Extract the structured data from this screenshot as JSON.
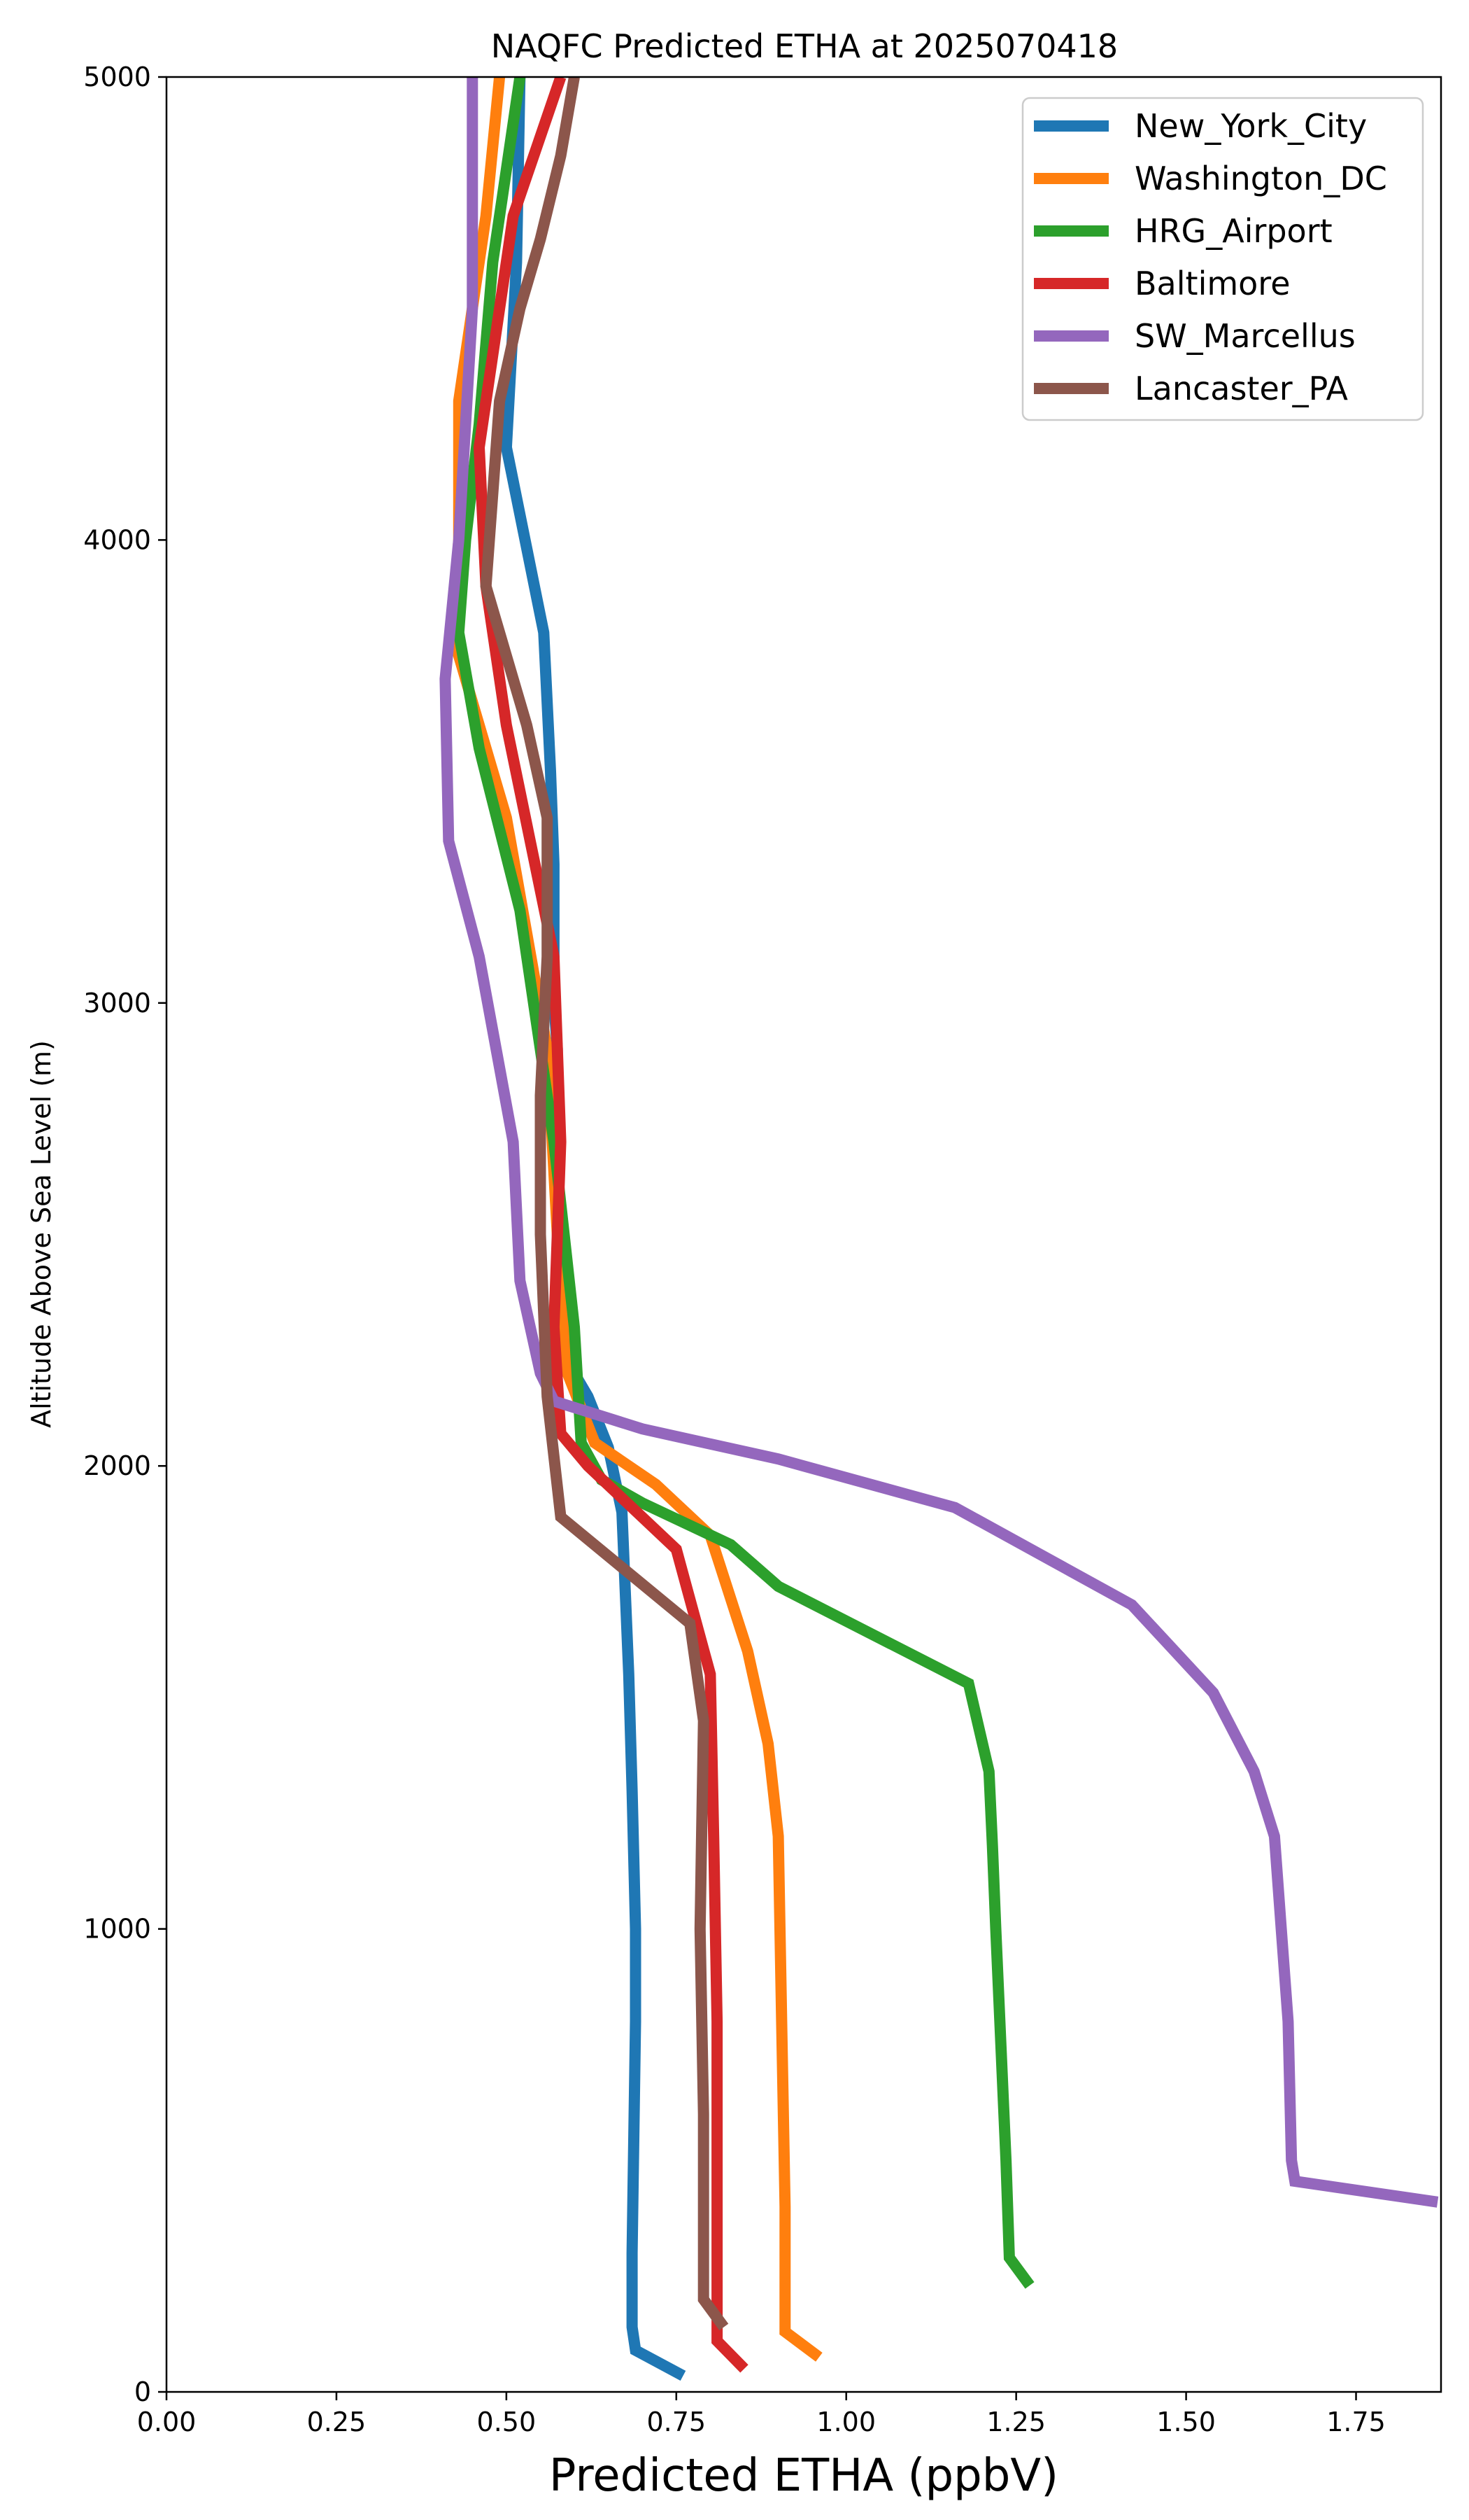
{
  "chart_data": {
    "type": "line",
    "title": "NAQFC Predicted ETHA at 2025070418",
    "xlabel": "Predicted ETHA (ppbV)",
    "ylabel": "Altitude Above Sea Level (m)",
    "xlim": [
      0,
      1.875
    ],
    "ylim": [
      0,
      5000
    ],
    "xticks": [
      "0.00",
      "0.25",
      "0.50",
      "0.75",
      "1.00",
      "1.25",
      "1.50",
      "1.75"
    ],
    "xtick_values": [
      0,
      0.25,
      0.5,
      0.75,
      1.0,
      1.25,
      1.5,
      1.75
    ],
    "yticks": [
      "0",
      "1000",
      "2000",
      "3000",
      "4000",
      "5000"
    ],
    "ytick_values": [
      0,
      1000,
      2000,
      3000,
      4000,
      5000
    ],
    "grid": false,
    "legend_position": "top-right",
    "series": [
      {
        "name": "New_York_City",
        "color": "#1f77b4",
        "points": [
          [
            0.76,
            35
          ],
          [
            0.69,
            90
          ],
          [
            0.685,
            140
          ],
          [
            0.685,
            300
          ],
          [
            0.69,
            800
          ],
          [
            0.69,
            1000
          ],
          [
            0.685,
            1300
          ],
          [
            0.68,
            1550
          ],
          [
            0.67,
            1900
          ],
          [
            0.65,
            2040
          ],
          [
            0.62,
            2150
          ],
          [
            0.58,
            2250
          ],
          [
            0.575,
            2700
          ],
          [
            0.575,
            2900
          ],
          [
            0.57,
            3000
          ],
          [
            0.57,
            3300
          ],
          [
            0.565,
            3500
          ],
          [
            0.555,
            3800
          ],
          [
            0.5,
            4200
          ],
          [
            0.515,
            4600
          ],
          [
            0.52,
            5000
          ]
        ]
      },
      {
        "name": "Washington_DC",
        "color": "#ff7f0e",
        "points": [
          [
            0.96,
            75
          ],
          [
            0.91,
            130
          ],
          [
            0.91,
            400
          ],
          [
            0.905,
            800
          ],
          [
            0.9,
            1200
          ],
          [
            0.885,
            1400
          ],
          [
            0.855,
            1600
          ],
          [
            0.8,
            1850
          ],
          [
            0.72,
            1960
          ],
          [
            0.63,
            2050
          ],
          [
            0.59,
            2200
          ],
          [
            0.575,
            2500
          ],
          [
            0.56,
            2900
          ],
          [
            0.5,
            3400
          ],
          [
            0.42,
            3800
          ],
          [
            0.43,
            4000
          ],
          [
            0.43,
            4300
          ],
          [
            0.47,
            4700
          ],
          [
            0.49,
            5000
          ]
        ]
      },
      {
        "name": "HRG_Airport",
        "color": "#2ca02c",
        "points": [
          [
            1.27,
            230
          ],
          [
            1.24,
            290
          ],
          [
            1.235,
            500
          ],
          [
            1.22,
            1000
          ],
          [
            1.215,
            1180
          ],
          [
            1.21,
            1340
          ],
          [
            1.18,
            1530
          ],
          [
            0.9,
            1740
          ],
          [
            0.83,
            1830
          ],
          [
            0.7,
            1920
          ],
          [
            0.64,
            1970
          ],
          [
            0.61,
            2050
          ],
          [
            0.6,
            2300
          ],
          [
            0.57,
            2700
          ],
          [
            0.52,
            3200
          ],
          [
            0.46,
            3550
          ],
          [
            0.43,
            3800
          ],
          [
            0.44,
            4000
          ],
          [
            0.46,
            4250
          ],
          [
            0.48,
            4600
          ],
          [
            0.5,
            4800
          ],
          [
            0.52,
            5000
          ]
        ]
      },
      {
        "name": "Baltimore",
        "color": "#d62728",
        "points": [
          [
            0.85,
            50
          ],
          [
            0.81,
            110
          ],
          [
            0.81,
            300
          ],
          [
            0.81,
            800
          ],
          [
            0.805,
            1200
          ],
          [
            0.8,
            1550
          ],
          [
            0.75,
            1820
          ],
          [
            0.62,
            2000
          ],
          [
            0.58,
            2070
          ],
          [
            0.57,
            2300
          ],
          [
            0.58,
            2700
          ],
          [
            0.57,
            3100
          ],
          [
            0.5,
            3600
          ],
          [
            0.47,
            3900
          ],
          [
            0.46,
            4200
          ],
          [
            0.51,
            4700
          ],
          [
            0.58,
            5000
          ]
        ]
      },
      {
        "name": "SW_Marcellus",
        "color": "#9467bd",
        "points": [
          [
            1.87,
            410
          ],
          [
            1.66,
            455
          ],
          [
            1.655,
            500
          ],
          [
            1.65,
            800
          ],
          [
            1.64,
            1000
          ],
          [
            1.63,
            1200
          ],
          [
            1.6,
            1340
          ],
          [
            1.54,
            1510
          ],
          [
            1.42,
            1700
          ],
          [
            1.16,
            1910
          ],
          [
            0.9,
            2015
          ],
          [
            0.7,
            2080
          ],
          [
            0.57,
            2140
          ],
          [
            0.55,
            2200
          ],
          [
            0.52,
            2400
          ],
          [
            0.51,
            2700
          ],
          [
            0.46,
            3100
          ],
          [
            0.415,
            3350
          ],
          [
            0.41,
            3700
          ],
          [
            0.43,
            4000
          ],
          [
            0.45,
            4500
          ],
          [
            0.45,
            5000
          ]
        ]
      },
      {
        "name": "Lancaster_PA",
        "color": "#8c564b",
        "points": [
          [
            0.82,
            140
          ],
          [
            0.79,
            200
          ],
          [
            0.79,
            600
          ],
          [
            0.785,
            1000
          ],
          [
            0.79,
            1450
          ],
          [
            0.77,
            1660
          ],
          [
            0.58,
            1890
          ],
          [
            0.56,
            2150
          ],
          [
            0.55,
            2500
          ],
          [
            0.55,
            2800
          ],
          [
            0.56,
            3100
          ],
          [
            0.56,
            3400
          ],
          [
            0.53,
            3600
          ],
          [
            0.47,
            3900
          ],
          [
            0.49,
            4300
          ],
          [
            0.52,
            4500
          ],
          [
            0.55,
            4650
          ],
          [
            0.58,
            4830
          ],
          [
            0.6,
            5000
          ]
        ]
      }
    ]
  }
}
